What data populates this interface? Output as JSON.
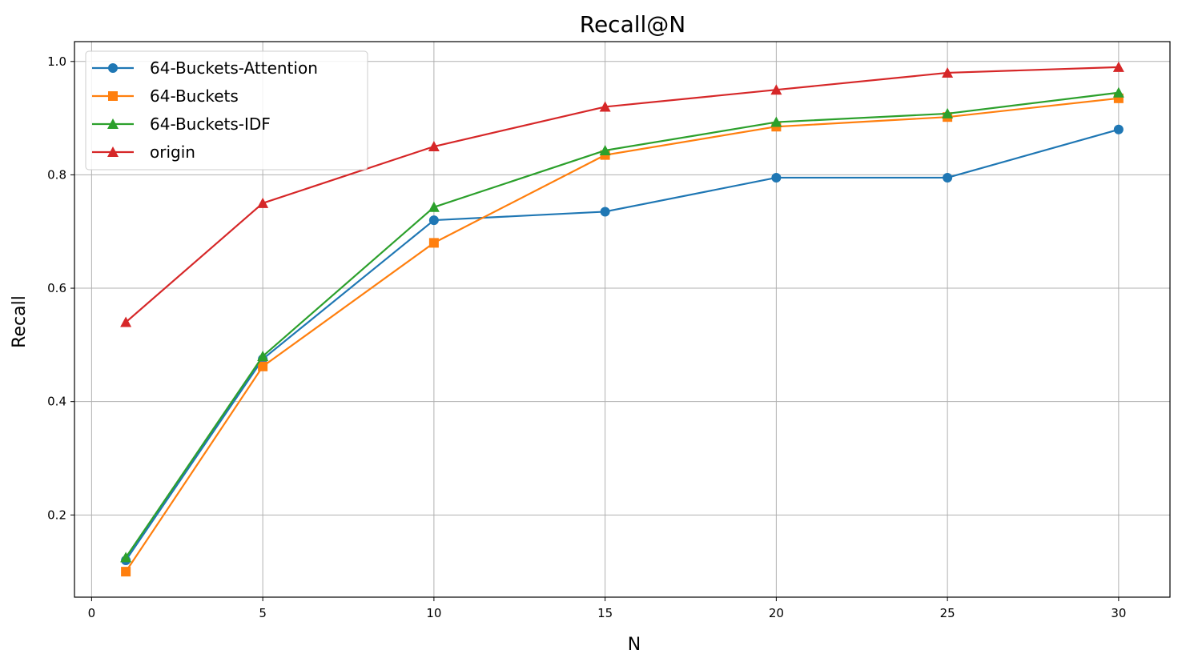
{
  "chart_data": {
    "type": "line",
    "title": "Recall@N",
    "xlabel": "N",
    "ylabel": "Recall",
    "x": [
      1,
      5,
      10,
      15,
      20,
      25,
      30
    ],
    "xlim": [
      -0.5,
      31.5
    ],
    "ylim": [
      0.055,
      1.035
    ],
    "xticks": [
      0,
      5,
      10,
      15,
      20,
      25,
      30
    ],
    "yticks": [
      0.2,
      0.4,
      0.6,
      0.8,
      1.0
    ],
    "ytick_labels": [
      "0.2",
      "0.4",
      "0.6",
      "0.8",
      "1.0"
    ],
    "grid": true,
    "legend_position": "upper-left",
    "series": [
      {
        "name": "64-Buckets-Attention",
        "marker": "circle",
        "color": "#1f77b4",
        "values": [
          0.12,
          0.475,
          0.72,
          0.735,
          0.795,
          0.795,
          0.88
        ]
      },
      {
        "name": "64-Buckets",
        "marker": "square",
        "color": "#ff7f0e",
        "values": [
          0.1,
          0.462,
          0.68,
          0.835,
          0.885,
          0.902,
          0.935
        ]
      },
      {
        "name": "64-Buckets-IDF",
        "marker": "triangle",
        "color": "#2ca02c",
        "values": [
          0.125,
          0.48,
          0.743,
          0.843,
          0.893,
          0.908,
          0.945
        ]
      },
      {
        "name": "origin",
        "marker": "triangle",
        "color": "#d62728",
        "values": [
          0.54,
          0.75,
          0.85,
          0.92,
          0.95,
          0.98,
          0.99
        ]
      }
    ]
  }
}
